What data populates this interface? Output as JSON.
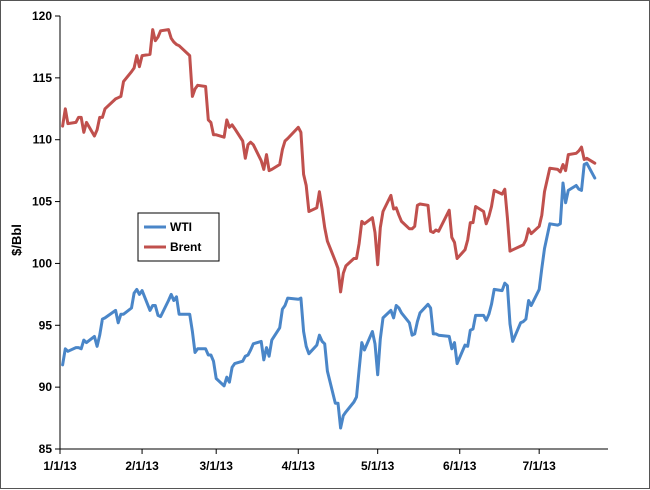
{
  "chart_data": {
    "type": "line",
    "title": "",
    "xlabel": "",
    "ylabel": "$/Bbl",
    "ylim": [
      85,
      120
    ],
    "yticks": [
      "85",
      "90",
      "95",
      "100",
      "105",
      "110",
      "115",
      "120"
    ],
    "xticks": [
      "1/1/13",
      "2/1/13",
      "3/1/13",
      "4/1/13",
      "5/1/13",
      "6/1/13",
      "7/1/13"
    ],
    "grid": false,
    "legend": {
      "placement": "center-left",
      "entries": [
        "WTI",
        "Brent"
      ]
    },
    "series": [
      {
        "name": "WTI",
        "color": "#4a86c8",
        "points": [
          [
            "2013-01-02",
            91.8
          ],
          [
            "2013-01-03",
            93.1
          ],
          [
            "2013-01-04",
            92.9
          ],
          [
            "2013-01-07",
            93.2
          ],
          [
            "2013-01-08",
            93.2
          ],
          [
            "2013-01-09",
            93.1
          ],
          [
            "2013-01-10",
            93.8
          ],
          [
            "2013-01-11",
            93.6
          ],
          [
            "2013-01-14",
            94.1
          ],
          [
            "2013-01-15",
            93.3
          ],
          [
            "2013-01-16",
            94.2
          ],
          [
            "2013-01-17",
            95.5
          ],
          [
            "2013-01-18",
            95.6
          ],
          [
            "2013-01-22",
            96.2
          ],
          [
            "2013-01-23",
            95.2
          ],
          [
            "2013-01-24",
            95.9
          ],
          [
            "2013-01-25",
            95.9
          ],
          [
            "2013-01-28",
            96.4
          ],
          [
            "2013-01-29",
            97.6
          ],
          [
            "2013-01-30",
            97.9
          ],
          [
            "2013-01-31",
            97.5
          ],
          [
            "2013-02-01",
            97.8
          ],
          [
            "2013-02-04",
            96.2
          ],
          [
            "2013-02-05",
            96.6
          ],
          [
            "2013-02-06",
            96.6
          ],
          [
            "2013-02-07",
            95.8
          ],
          [
            "2013-02-08",
            95.7
          ],
          [
            "2013-02-11",
            97.0
          ],
          [
            "2013-02-12",
            97.5
          ],
          [
            "2013-02-13",
            97.0
          ],
          [
            "2013-02-14",
            97.3
          ],
          [
            "2013-02-15",
            95.9
          ],
          [
            "2013-02-19",
            95.9
          ],
          [
            "2013-02-20",
            94.5
          ],
          [
            "2013-02-21",
            92.8
          ],
          [
            "2013-02-22",
            93.1
          ],
          [
            "2013-02-25",
            93.1
          ],
          [
            "2013-02-26",
            92.6
          ],
          [
            "2013-02-27",
            92.6
          ],
          [
            "2013-02-28",
            92.1
          ],
          [
            "2013-03-01",
            90.7
          ],
          [
            "2013-03-04",
            90.1
          ],
          [
            "2013-03-05",
            90.8
          ],
          [
            "2013-03-06",
            90.4
          ],
          [
            "2013-03-07",
            91.6
          ],
          [
            "2013-03-08",
            91.9
          ],
          [
            "2013-03-11",
            92.1
          ],
          [
            "2013-03-12",
            92.5
          ],
          [
            "2013-03-13",
            92.6
          ],
          [
            "2013-03-14",
            93.0
          ],
          [
            "2013-03-15",
            93.5
          ],
          [
            "2013-03-18",
            93.7
          ],
          [
            "2013-03-19",
            92.2
          ],
          [
            "2013-03-20",
            93.2
          ],
          [
            "2013-03-21",
            92.5
          ],
          [
            "2013-03-22",
            93.8
          ],
          [
            "2013-03-25",
            94.8
          ],
          [
            "2013-03-26",
            96.3
          ],
          [
            "2013-03-27",
            96.6
          ],
          [
            "2013-03-28",
            97.2
          ],
          [
            "2013-04-01",
            97.1
          ],
          [
            "2013-04-02",
            97.2
          ],
          [
            "2013-04-03",
            94.5
          ],
          [
            "2013-04-04",
            93.3
          ],
          [
            "2013-04-05",
            92.7
          ],
          [
            "2013-04-08",
            93.4
          ],
          [
            "2013-04-09",
            94.2
          ],
          [
            "2013-04-10",
            93.7
          ],
          [
            "2013-04-11",
            93.5
          ],
          [
            "2013-04-12",
            91.3
          ],
          [
            "2013-04-15",
            88.7
          ],
          [
            "2013-04-16",
            88.7
          ],
          [
            "2013-04-17",
            86.7
          ],
          [
            "2013-04-18",
            87.7
          ],
          [
            "2013-04-19",
            88.0
          ],
          [
            "2013-04-22",
            88.8
          ],
          [
            "2013-04-23",
            89.2
          ],
          [
            "2013-04-24",
            91.4
          ],
          [
            "2013-04-25",
            93.6
          ],
          [
            "2013-04-26",
            93.0
          ],
          [
            "2013-04-29",
            94.5
          ],
          [
            "2013-04-30",
            93.5
          ],
          [
            "2013-05-01",
            91.0
          ],
          [
            "2013-05-02",
            93.9
          ],
          [
            "2013-05-03",
            95.6
          ],
          [
            "2013-05-06",
            96.2
          ],
          [
            "2013-05-07",
            95.6
          ],
          [
            "2013-05-08",
            96.6
          ],
          [
            "2013-05-09",
            96.4
          ],
          [
            "2013-05-10",
            96.0
          ],
          [
            "2013-05-13",
            95.2
          ],
          [
            "2013-05-14",
            94.2
          ],
          [
            "2013-05-15",
            94.3
          ],
          [
            "2013-05-16",
            95.3
          ],
          [
            "2013-05-17",
            96.0
          ],
          [
            "2013-05-20",
            96.7
          ],
          [
            "2013-05-21",
            96.4
          ],
          [
            "2013-05-22",
            94.3
          ],
          [
            "2013-05-23",
            94.3
          ],
          [
            "2013-05-24",
            94.2
          ],
          [
            "2013-05-28",
            94.1
          ],
          [
            "2013-05-29",
            93.1
          ],
          [
            "2013-05-30",
            93.6
          ],
          [
            "2013-05-31",
            91.9
          ],
          [
            "2013-06-03",
            93.4
          ],
          [
            "2013-06-04",
            93.3
          ],
          [
            "2013-06-05",
            94.6
          ],
          [
            "2013-06-06",
            94.7
          ],
          [
            "2013-06-07",
            95.8
          ],
          [
            "2013-06-10",
            95.8
          ],
          [
            "2013-06-11",
            95.4
          ],
          [
            "2013-06-12",
            95.9
          ],
          [
            "2013-06-13",
            96.7
          ],
          [
            "2013-06-14",
            97.9
          ],
          [
            "2013-06-17",
            97.8
          ],
          [
            "2013-06-18",
            98.4
          ],
          [
            "2013-06-19",
            98.2
          ],
          [
            "2013-06-20",
            95.1
          ],
          [
            "2013-06-21",
            93.7
          ],
          [
            "2013-06-24",
            95.2
          ],
          [
            "2013-06-25",
            95.3
          ],
          [
            "2013-06-26",
            95.5
          ],
          [
            "2013-06-27",
            97.0
          ],
          [
            "2013-06-28",
            96.6
          ],
          [
            "2013-07-01",
            97.9
          ],
          [
            "2013-07-02",
            99.6
          ],
          [
            "2013-07-03",
            101.2
          ],
          [
            "2013-07-05",
            103.2
          ],
          [
            "2013-07-08",
            103.1
          ],
          [
            "2013-07-09",
            103.2
          ],
          [
            "2013-07-10",
            106.5
          ],
          [
            "2013-07-11",
            104.9
          ],
          [
            "2013-07-12",
            105.9
          ],
          [
            "2013-07-15",
            106.3
          ],
          [
            "2013-07-16",
            106.0
          ],
          [
            "2013-07-17",
            105.9
          ],
          [
            "2013-07-18",
            108.0
          ],
          [
            "2013-07-19",
            108.1
          ],
          [
            "2013-07-22",
            106.9
          ]
        ]
      },
      {
        "name": "Brent",
        "color": "#c0504d",
        "points": [
          [
            "2013-01-02",
            111.1
          ],
          [
            "2013-01-03",
            112.5
          ],
          [
            "2013-01-04",
            111.3
          ],
          [
            "2013-01-07",
            111.4
          ],
          [
            "2013-01-08",
            111.8
          ],
          [
            "2013-01-09",
            111.8
          ],
          [
            "2013-01-10",
            110.6
          ],
          [
            "2013-01-11",
            111.4
          ],
          [
            "2013-01-14",
            110.3
          ],
          [
            "2013-01-15",
            110.8
          ],
          [
            "2013-01-16",
            111.8
          ],
          [
            "2013-01-17",
            111.8
          ],
          [
            "2013-01-18",
            112.5
          ],
          [
            "2013-01-22",
            113.3
          ],
          [
            "2013-01-23",
            113.4
          ],
          [
            "2013-01-24",
            113.5
          ],
          [
            "2013-01-25",
            114.7
          ],
          [
            "2013-01-28",
            115.5
          ],
          [
            "2013-01-29",
            115.8
          ],
          [
            "2013-01-30",
            116.8
          ],
          [
            "2013-01-31",
            115.9
          ],
          [
            "2013-02-01",
            116.8
          ],
          [
            "2013-02-04",
            116.9
          ],
          [
            "2013-02-05",
            118.9
          ],
          [
            "2013-02-06",
            118.0
          ],
          [
            "2013-02-07",
            118.3
          ],
          [
            "2013-02-08",
            118.8
          ],
          [
            "2013-02-11",
            118.9
          ],
          [
            "2013-02-12",
            118.2
          ],
          [
            "2013-02-13",
            117.9
          ],
          [
            "2013-02-14",
            117.7
          ],
          [
            "2013-02-15",
            117.6
          ],
          [
            "2013-02-19",
            116.8
          ],
          [
            "2013-02-20",
            113.5
          ],
          [
            "2013-02-21",
            114.1
          ],
          [
            "2013-02-22",
            114.4
          ],
          [
            "2013-02-25",
            114.3
          ],
          [
            "2013-02-26",
            111.6
          ],
          [
            "2013-02-27",
            111.4
          ],
          [
            "2013-02-28",
            110.4
          ],
          [
            "2013-03-01",
            110.4
          ],
          [
            "2013-03-04",
            110.2
          ],
          [
            "2013-03-05",
            111.6
          ],
          [
            "2013-03-06",
            111.0
          ],
          [
            "2013-03-07",
            111.2
          ],
          [
            "2013-03-08",
            110.9
          ],
          [
            "2013-03-11",
            109.9
          ],
          [
            "2013-03-12",
            108.5
          ],
          [
            "2013-03-13",
            109.6
          ],
          [
            "2013-03-14",
            109.8
          ],
          [
            "2013-03-15",
            109.6
          ],
          [
            "2013-03-18",
            108.3
          ],
          [
            "2013-03-19",
            107.6
          ],
          [
            "2013-03-20",
            108.8
          ],
          [
            "2013-03-21",
            107.5
          ],
          [
            "2013-03-22",
            107.6
          ],
          [
            "2013-03-25",
            108.0
          ],
          [
            "2013-03-26",
            109.2
          ],
          [
            "2013-03-27",
            109.9
          ],
          [
            "2013-03-28",
            110.1
          ],
          [
            "2013-04-01",
            111.0
          ],
          [
            "2013-04-02",
            110.6
          ],
          [
            "2013-04-03",
            107.2
          ],
          [
            "2013-04-04",
            106.3
          ],
          [
            "2013-04-05",
            104.2
          ],
          [
            "2013-04-08",
            104.5
          ],
          [
            "2013-04-09",
            105.8
          ],
          [
            "2013-04-10",
            104.4
          ],
          [
            "2013-04-11",
            102.9
          ],
          [
            "2013-04-12",
            101.8
          ],
          [
            "2013-04-15",
            100.2
          ],
          [
            "2013-04-16",
            99.6
          ],
          [
            "2013-04-17",
            97.7
          ],
          [
            "2013-04-18",
            99.2
          ],
          [
            "2013-04-19",
            99.8
          ],
          [
            "2013-04-22",
            100.4
          ],
          [
            "2013-04-23",
            100.4
          ],
          [
            "2013-04-24",
            101.6
          ],
          [
            "2013-04-25",
            103.4
          ],
          [
            "2013-04-26",
            103.2
          ],
          [
            "2013-04-29",
            103.7
          ],
          [
            "2013-04-30",
            102.5
          ],
          [
            "2013-05-01",
            99.9
          ],
          [
            "2013-05-02",
            102.9
          ],
          [
            "2013-05-03",
            104.2
          ],
          [
            "2013-05-06",
            105.5
          ],
          [
            "2013-05-07",
            104.4
          ],
          [
            "2013-05-08",
            104.5
          ],
          [
            "2013-05-09",
            103.9
          ],
          [
            "2013-05-10",
            103.4
          ],
          [
            "2013-05-13",
            102.8
          ],
          [
            "2013-05-14",
            102.8
          ],
          [
            "2013-05-15",
            103.0
          ],
          [
            "2013-05-16",
            104.7
          ],
          [
            "2013-05-17",
            104.8
          ],
          [
            "2013-05-20",
            104.7
          ],
          [
            "2013-05-21",
            102.6
          ],
          [
            "2013-05-22",
            102.5
          ],
          [
            "2013-05-23",
            102.7
          ],
          [
            "2013-05-24",
            102.6
          ],
          [
            "2013-05-28",
            104.3
          ],
          [
            "2013-05-29",
            102.1
          ],
          [
            "2013-05-30",
            101.7
          ],
          [
            "2013-05-31",
            100.4
          ],
          [
            "2013-06-03",
            101.1
          ],
          [
            "2013-06-04",
            101.9
          ],
          [
            "2013-06-05",
            103.3
          ],
          [
            "2013-06-06",
            103.3
          ],
          [
            "2013-06-07",
            104.6
          ],
          [
            "2013-06-10",
            104.2
          ],
          [
            "2013-06-11",
            103.2
          ],
          [
            "2013-06-12",
            103.8
          ],
          [
            "2013-06-13",
            104.6
          ],
          [
            "2013-06-14",
            105.9
          ],
          [
            "2013-06-17",
            105.6
          ],
          [
            "2013-06-18",
            106.0
          ],
          [
            "2013-06-19",
            103.7
          ],
          [
            "2013-06-20",
            101.0
          ],
          [
            "2013-06-21",
            101.1
          ],
          [
            "2013-06-24",
            101.4
          ],
          [
            "2013-06-25",
            101.5
          ],
          [
            "2013-06-26",
            101.9
          ],
          [
            "2013-06-27",
            102.8
          ],
          [
            "2013-06-28",
            102.4
          ],
          [
            "2013-07-01",
            103.0
          ],
          [
            "2013-07-02",
            103.9
          ],
          [
            "2013-07-03",
            105.8
          ],
          [
            "2013-07-05",
            107.7
          ],
          [
            "2013-07-08",
            107.6
          ],
          [
            "2013-07-09",
            107.4
          ],
          [
            "2013-07-10",
            108.0
          ],
          [
            "2013-07-11",
            107.5
          ],
          [
            "2013-07-12",
            108.8
          ],
          [
            "2013-07-15",
            108.9
          ],
          [
            "2013-07-16",
            109.1
          ],
          [
            "2013-07-17",
            109.4
          ],
          [
            "2013-07-18",
            108.4
          ],
          [
            "2013-07-19",
            108.5
          ],
          [
            "2013-07-22",
            108.1
          ]
        ]
      }
    ]
  }
}
